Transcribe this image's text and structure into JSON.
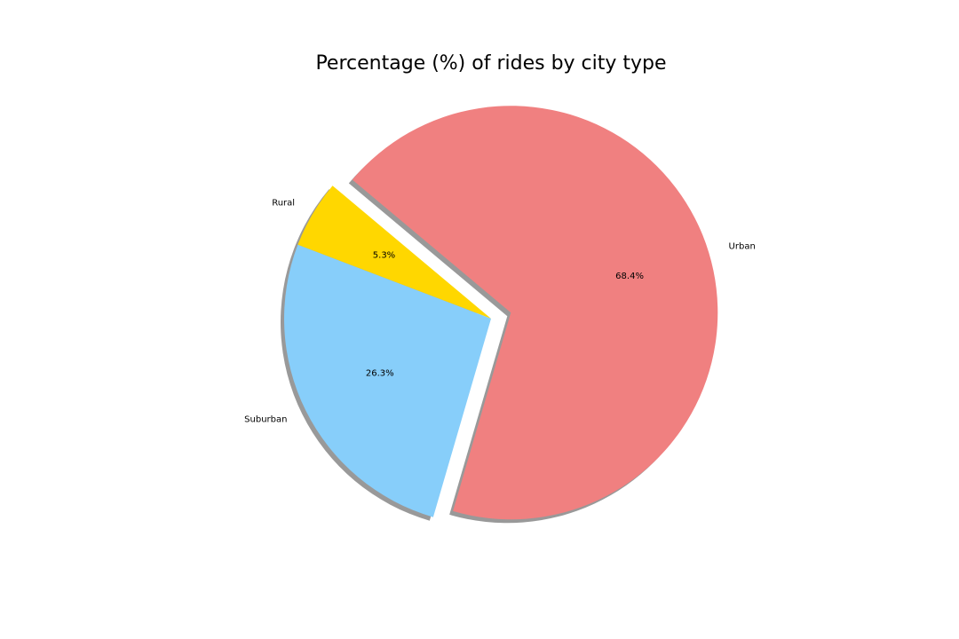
{
  "chart_data": {
    "type": "pie",
    "title": "Percentage (%) of rides by city type",
    "slices": [
      {
        "label": "Rural",
        "value": 5.3,
        "pct_label": "5.3%",
        "color": "#FFD700",
        "explode": 0
      },
      {
        "label": "Suburban",
        "value": 26.3,
        "pct_label": "26.3%",
        "color": "#87CEFA",
        "explode": 0
      },
      {
        "label": "Urban",
        "value": 68.4,
        "pct_label": "68.4%",
        "color": "#F08080",
        "explode": 0.1
      }
    ],
    "start_angle_deg": 140,
    "direction": "counterclockwise",
    "shadow": true,
    "legend": "none"
  }
}
